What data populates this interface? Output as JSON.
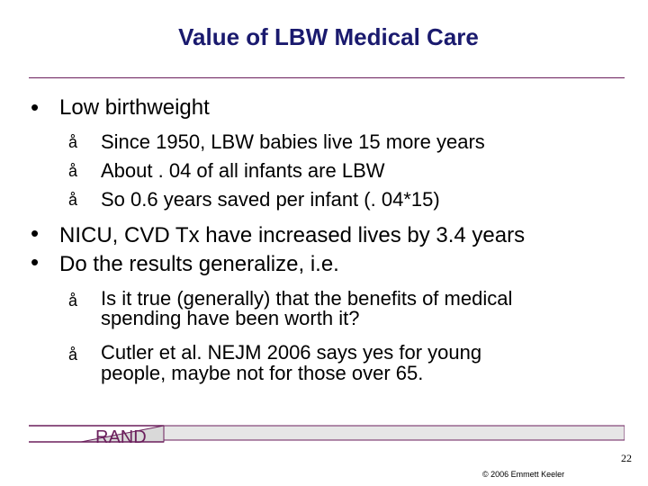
{
  "slide": {
    "title": "Value of LBW Medical Care",
    "bullets": [
      {
        "text": "Low birthweight",
        "subs": [
          "Since 1950, LBW babies live 15 more years",
          "About . 04 of all infants are LBW",
          "So 0.6 years saved per infant (. 04*15)"
        ]
      },
      {
        "text": "NICU, CVD Tx have increased lives by 3.4 years"
      },
      {
        "text": "Do the results generalize, i.e.",
        "subs": [
          [
            "Is it true (generally) that the benefits of medical",
            "spending have been worth it?"
          ],
          [
            "Cutler et al. NEJM 2006 says yes for young",
            "people, maybe not for those over 65."
          ]
        ]
      }
    ],
    "bullet_glyph": "•",
    "sub_glyph": "å",
    "footer_label": "RAND",
    "page_number": "22",
    "copyright": "© 2006 Emmett Keeler",
    "colors": {
      "title": "#1a1a6e",
      "rule": "#6b1f5c",
      "footer_text": "#6b1f5c"
    }
  }
}
